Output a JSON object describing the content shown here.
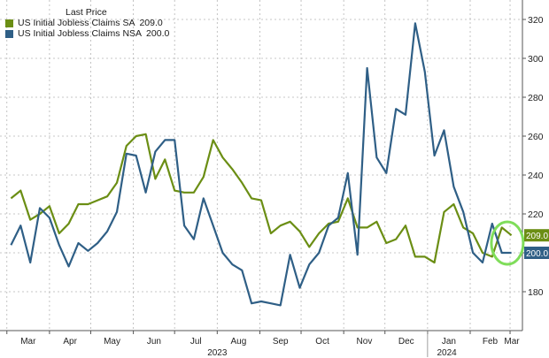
{
  "legend": {
    "header": "Last Price",
    "entries": [
      {
        "label": "US Initial Jobless Claims SA",
        "value": "209.0",
        "color": "#6b8e14"
      },
      {
        "label": "US Initial Jobless Claims NSA",
        "value": "200.0",
        "color": "#2f5f86"
      }
    ]
  },
  "chart_data": {
    "type": "line",
    "title": "",
    "xlabel": "",
    "ylabel": "",
    "ylim": [
      160,
      330
    ],
    "yticks": [
      180,
      200,
      220,
      240,
      260,
      280,
      300,
      320
    ],
    "x": [
      "2023-03-04",
      "2023-03-11",
      "2023-03-18",
      "2023-03-25",
      "2023-04-01",
      "2023-04-08",
      "2023-04-15",
      "2023-04-22",
      "2023-04-29",
      "2023-05-06",
      "2023-05-13",
      "2023-05-20",
      "2023-05-27",
      "2023-06-03",
      "2023-06-10",
      "2023-06-17",
      "2023-06-24",
      "2023-07-01",
      "2023-07-08",
      "2023-07-15",
      "2023-07-22",
      "2023-07-29",
      "2023-08-05",
      "2023-08-12",
      "2023-08-19",
      "2023-08-26",
      "2023-09-02",
      "2023-09-09",
      "2023-09-16",
      "2023-09-23",
      "2023-09-30",
      "2023-10-07",
      "2023-10-14",
      "2023-10-21",
      "2023-10-28",
      "2023-11-04",
      "2023-11-11",
      "2023-11-18",
      "2023-11-25",
      "2023-12-02",
      "2023-12-09",
      "2023-12-16",
      "2023-12-23",
      "2023-12-30",
      "2024-01-06",
      "2024-01-13",
      "2024-01-20",
      "2024-01-27",
      "2024-02-03",
      "2024-02-10",
      "2024-02-17",
      "2024-02-24",
      "2024-03-02"
    ],
    "x_month_labels": [
      {
        "label": "Mar",
        "date": "2023-03-01"
      },
      {
        "label": "Apr",
        "date": "2023-04-01"
      },
      {
        "label": "May",
        "date": "2023-05-01"
      },
      {
        "label": "Jun",
        "date": "2023-06-01"
      },
      {
        "label": "Jul",
        "date": "2023-07-01"
      },
      {
        "label": "Aug",
        "date": "2023-08-01"
      },
      {
        "label": "Sep",
        "date": "2023-09-01"
      },
      {
        "label": "Oct",
        "date": "2023-10-01"
      },
      {
        "label": "Nov",
        "date": "2023-11-01"
      },
      {
        "label": "Dec",
        "date": "2023-12-01"
      },
      {
        "label": "Jan",
        "date": "2024-01-01"
      },
      {
        "label": "Feb",
        "date": "2024-02-01"
      },
      {
        "label": "Mar",
        "date": "2024-03-01"
      }
    ],
    "x_year_labels": [
      {
        "label": "2023",
        "date": "2023-08-01"
      },
      {
        "label": "2024",
        "date": "2024-01-15"
      }
    ],
    "grid": true,
    "legend_position": "top-left",
    "axis_side": "right",
    "series": [
      {
        "name": "US Initial Jobless Claims SA",
        "color": "#6b8e14",
        "values": [
          228,
          232,
          217,
          220,
          224,
          210,
          215,
          225,
          225,
          227,
          229,
          236,
          255,
          260,
          261,
          238,
          248,
          232,
          231,
          231,
          239,
          258,
          249,
          243,
          236,
          228,
          227,
          210,
          214,
          216,
          211,
          203,
          210,
          215,
          216,
          228,
          213,
          213,
          216,
          205,
          207,
          214,
          198,
          198,
          195,
          221,
          225,
          213,
          210,
          200,
          198,
          213,
          209
        ]
      },
      {
        "name": "US Initial Jobless Claims NSA",
        "color": "#2f5f86",
        "values": [
          204,
          214,
          195,
          223,
          218,
          204,
          193,
          205,
          201,
          205,
          211,
          221,
          251,
          250,
          231,
          252,
          258,
          258,
          214,
          207,
          228,
          214,
          200,
          194,
          191,
          174,
          175,
          174,
          173,
          199,
          182,
          194,
          200,
          214,
          218,
          241,
          199,
          295,
          249,
          241,
          274,
          271,
          318,
          293,
          250,
          263,
          234,
          221,
          200,
          195,
          215,
          200,
          200
        ]
      }
    ],
    "annotations": [
      {
        "type": "ellipse-highlight",
        "color": "#7fdd5a",
        "date": "2024-02-28",
        "y": 205
      }
    ]
  }
}
